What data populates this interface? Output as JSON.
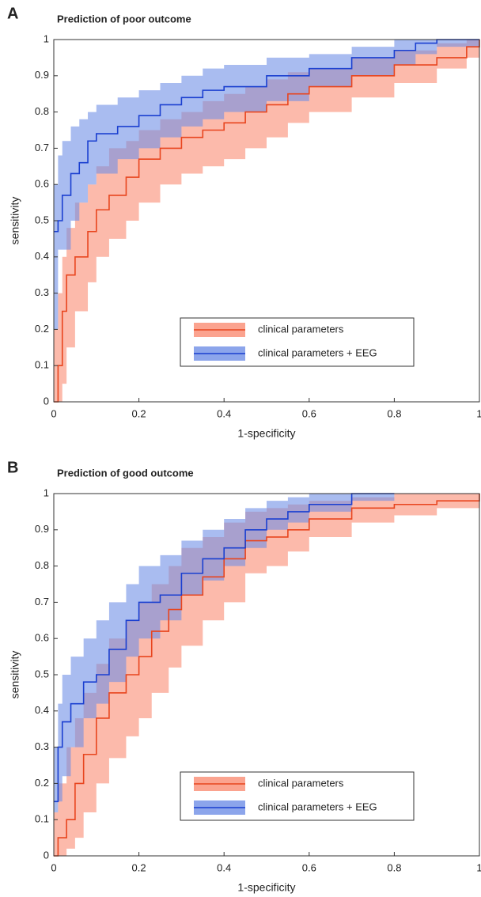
{
  "chart_data": [
    {
      "type": "line",
      "panel_label": "A",
      "title": "Prediction of poor outcome",
      "x_label": "1-specificity",
      "y_label": "sensitivity",
      "xlim": [
        0,
        1
      ],
      "ylim": [
        0,
        1
      ],
      "xticks": [
        0,
        0.2,
        0.4,
        0.6,
        0.8,
        1
      ],
      "yticks": [
        0,
        0.1,
        0.2,
        0.3,
        0.4,
        0.5,
        0.6,
        0.7,
        0.8,
        0.9,
        1
      ],
      "legend": "lower right",
      "step": true,
      "series": [
        {
          "name": "clinical parameters",
          "color": "#e8451e",
          "band_color": "#fa8c73",
          "x": [
            0,
            0.01,
            0.02,
            0.03,
            0.05,
            0.08,
            0.1,
            0.13,
            0.17,
            0.2,
            0.25,
            0.3,
            0.35,
            0.4,
            0.45,
            0.5,
            0.55,
            0.6,
            0.7,
            0.8,
            0.9,
            0.97,
            1
          ],
          "values": [
            0,
            0.1,
            0.25,
            0.35,
            0.4,
            0.47,
            0.53,
            0.57,
            0.62,
            0.67,
            0.7,
            0.73,
            0.75,
            0.77,
            0.8,
            0.82,
            0.85,
            0.87,
            0.9,
            0.93,
            0.95,
            0.98,
            1
          ],
          "lower": [
            0,
            0,
            0.05,
            0.15,
            0.25,
            0.33,
            0.4,
            0.45,
            0.5,
            0.55,
            0.6,
            0.63,
            0.65,
            0.67,
            0.7,
            0.73,
            0.77,
            0.8,
            0.84,
            0.88,
            0.92,
            0.95,
            0.98
          ],
          "upper": [
            0.2,
            0.3,
            0.4,
            0.48,
            0.55,
            0.6,
            0.65,
            0.7,
            0.72,
            0.75,
            0.78,
            0.8,
            0.83,
            0.85,
            0.87,
            0.89,
            0.91,
            0.92,
            0.95,
            0.97,
            0.99,
            1,
            1
          ]
        },
        {
          "name": "clinical parameters + EEG",
          "color": "#1a3fd0",
          "band_color": "#6f8fe6",
          "x": [
            0,
            0.01,
            0.02,
            0.04,
            0.06,
            0.08,
            0.1,
            0.15,
            0.2,
            0.25,
            0.3,
            0.35,
            0.4,
            0.5,
            0.6,
            0.7,
            0.8,
            0.85,
            0.9,
            1
          ],
          "values": [
            0.47,
            0.5,
            0.57,
            0.63,
            0.66,
            0.72,
            0.74,
            0.76,
            0.79,
            0.82,
            0.84,
            0.86,
            0.87,
            0.9,
            0.92,
            0.95,
            0.97,
            0.99,
            1,
            1
          ],
          "lower": [
            0.2,
            0.42,
            0.42,
            0.5,
            0.55,
            0.6,
            0.63,
            0.67,
            0.7,
            0.73,
            0.76,
            0.78,
            0.8,
            0.83,
            0.87,
            0.9,
            0.93,
            0.96,
            0.98,
            1
          ],
          "upper": [
            0.6,
            0.68,
            0.72,
            0.76,
            0.78,
            0.8,
            0.82,
            0.84,
            0.86,
            0.88,
            0.9,
            0.92,
            0.93,
            0.95,
            0.96,
            0.98,
            1,
            1,
            1,
            1
          ]
        }
      ]
    },
    {
      "type": "line",
      "panel_label": "B",
      "title": "Prediction of good outcome",
      "x_label": "1-specificity",
      "y_label": "sensitivity",
      "xlim": [
        0,
        1
      ],
      "ylim": [
        0,
        1
      ],
      "xticks": [
        0,
        0.2,
        0.4,
        0.6,
        0.8,
        1
      ],
      "yticks": [
        0,
        0.1,
        0.2,
        0.3,
        0.4,
        0.5,
        0.6,
        0.7,
        0.8,
        0.9,
        1
      ],
      "legend": "lower right",
      "step": true,
      "series": [
        {
          "name": "clinical parameters",
          "color": "#e8451e",
          "band_color": "#fa8c73",
          "x": [
            0,
            0.01,
            0.03,
            0.05,
            0.07,
            0.1,
            0.13,
            0.17,
            0.2,
            0.23,
            0.27,
            0.3,
            0.35,
            0.4,
            0.45,
            0.5,
            0.55,
            0.6,
            0.7,
            0.8,
            0.9,
            1
          ],
          "values": [
            0,
            0.05,
            0.1,
            0.2,
            0.28,
            0.38,
            0.45,
            0.5,
            0.55,
            0.62,
            0.68,
            0.72,
            0.77,
            0.82,
            0.87,
            0.88,
            0.9,
            0.93,
            0.96,
            0.97,
            0.98,
            1
          ],
          "lower": [
            0,
            0,
            0.02,
            0.05,
            0.12,
            0.2,
            0.27,
            0.33,
            0.38,
            0.45,
            0.52,
            0.58,
            0.65,
            0.7,
            0.78,
            0.8,
            0.84,
            0.88,
            0.92,
            0.94,
            0.96,
            0.98
          ],
          "upper": [
            0.12,
            0.2,
            0.3,
            0.38,
            0.45,
            0.53,
            0.6,
            0.65,
            0.7,
            0.75,
            0.8,
            0.85,
            0.88,
            0.92,
            0.95,
            0.96,
            0.97,
            0.98,
            0.99,
            1,
            1,
            1
          ]
        },
        {
          "name": "clinical parameters + EEG",
          "color": "#1a3fd0",
          "band_color": "#6f8fe6",
          "x": [
            0,
            0.01,
            0.02,
            0.04,
            0.07,
            0.1,
            0.13,
            0.17,
            0.2,
            0.25,
            0.3,
            0.35,
            0.4,
            0.45,
            0.5,
            0.55,
            0.6,
            0.7,
            0.8
          ],
          "values": [
            0.15,
            0.3,
            0.37,
            0.42,
            0.48,
            0.5,
            0.57,
            0.65,
            0.7,
            0.72,
            0.78,
            0.82,
            0.85,
            0.9,
            0.93,
            0.95,
            0.97,
            1,
            1
          ],
          "lower": [
            0.12,
            0.15,
            0.22,
            0.3,
            0.38,
            0.42,
            0.48,
            0.55,
            0.6,
            0.65,
            0.72,
            0.76,
            0.8,
            0.85,
            0.9,
            0.92,
            0.95,
            0.98,
            1
          ],
          "upper": [
            0.3,
            0.42,
            0.5,
            0.55,
            0.6,
            0.65,
            0.7,
            0.75,
            0.8,
            0.83,
            0.87,
            0.9,
            0.93,
            0.96,
            0.98,
            0.99,
            1,
            1,
            1
          ]
        }
      ]
    }
  ]
}
